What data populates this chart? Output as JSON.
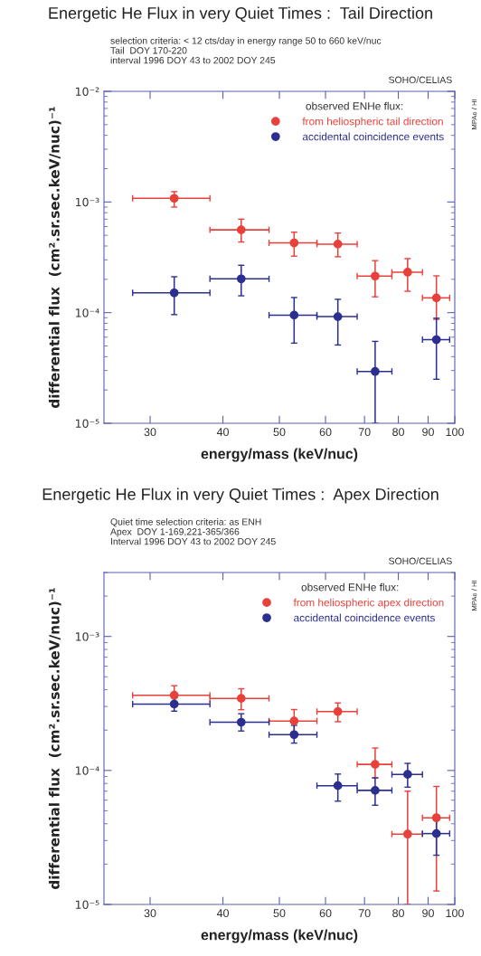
{
  "chart_data": [
    {
      "type": "scatter",
      "title": "Energetic He Flux in very Quiet Times :  Tail Direction",
      "subtitle": "selection criteria: < 12 cts/day in energy range 50 to 660 keV/nuc\nTail  DOY 170-220\ninterval 1996 DOY 43 to 2002 DOY 245",
      "xlabel": "energy/mass (keV/nuc)",
      "ylabel": "differential flux  (cm².sr.sec.keV/nuc)⁻¹",
      "legend_title": "observed ENHe flux:",
      "annotations": [
        "SOHO/CELIAS",
        "MPAe / HI"
      ],
      "log": "xy",
      "legend": "top right",
      "marker": "circle",
      "grid": false,
      "xlim": [
        25,
        100
      ],
      "xticks": [
        30,
        40,
        50,
        60,
        70,
        80,
        90,
        100
      ],
      "ylim": [
        1e-05,
        0.01
      ],
      "yticks": [
        {
          "value": 1e-05,
          "label": "10⁻⁵"
        },
        {
          "value": 0.0001,
          "label": "10⁻⁴"
        },
        {
          "value": 0.001,
          "label": "10⁻³"
        },
        {
          "value": 0.01,
          "label": "10⁻²"
        }
      ],
      "x": [
        33,
        43,
        53,
        63,
        73,
        83,
        93
      ],
      "series": [
        {
          "name": "from heliospheric tail direction",
          "color": "#e8403a",
          "values": [
            0.00108,
            0.00056,
            0.000427,
            0.000416,
            0.000214,
            0.000232,
            0.000136
          ],
          "errors": [
            [
              0.0009,
              0.00124
            ],
            [
              0.000435,
              0.0007
            ],
            [
              0.000324,
              0.000534
            ],
            [
              0.00032,
              0.000524
            ],
            [
              0.000139,
              0.000295
            ],
            [
              0.000156,
              0.000308
            ],
            [
              8.7e-05,
              0.000215
            ]
          ],
          "xerrors": [
            5,
            5,
            5,
            5,
            5,
            5,
            5
          ]
        },
        {
          "name": "accidental coincidence events",
          "color": "#2b2f8f",
          "values": [
            0.000151,
            0.000202,
            9.5e-05,
            9.2e-05,
            2.94e-05,
            null,
            5.7e-05
          ],
          "errors": [
            [
              9.6e-05,
              0.000211
            ],
            [
              0.000142,
              0.000268
            ],
            [
              5.3e-05,
              0.000137
            ],
            [
              5.1e-05,
              0.000132
            ],
            [
              1e-05,
              5.5e-05
            ],
            null,
            [
              2.5e-05,
              8.9e-05
            ]
          ],
          "xerrors": [
            5,
            5,
            5,
            5,
            5,
            null,
            5
          ]
        }
      ]
    },
    {
      "type": "scatter",
      "title": "Energetic He Flux in very Quiet Times :  Apex Direction",
      "subtitle": "Quiet time selection criteria: as ENH\nApex  DOY 1-169,221-365/366\nInterval 1996 DOY 43 to 2002 DOY 245",
      "xlabel": "energy/mass (keV/nuc)",
      "ylabel": "differential flux  (cm².sr.sec.keV/nuc)⁻¹",
      "legend_title": "observed ENHe flux:",
      "annotations": [
        "SOHO/CELIAS",
        "MPAe / HI"
      ],
      "log": "xy",
      "legend": "top right",
      "marker": "circle",
      "grid": false,
      "xlim": [
        25,
        100
      ],
      "xticks": [
        30,
        40,
        50,
        60,
        70,
        80,
        90,
        100
      ],
      "ylim": [
        1e-05,
        0.003
      ],
      "yticks": [
        {
          "value": 1e-05,
          "label": "10⁻⁵"
        },
        {
          "value": 0.0001,
          "label": "10⁻⁴"
        },
        {
          "value": 0.001,
          "label": "10⁻³"
        }
      ],
      "x": [
        33,
        43,
        53,
        63,
        73,
        83,
        93
      ],
      "series": [
        {
          "name": "from heliospheric apex direction",
          "color": "#e8403a",
          "values": [
            0.000364,
            0.000345,
            0.000234,
            0.000275,
            0.000111,
            3.35e-05,
            4.43e-05
          ],
          "errors": [
            [
              0.000298,
              0.000429
            ],
            [
              0.000284,
              0.000407
            ],
            [
              0.000192,
              0.000285
            ],
            [
              0.000231,
              0.000319
            ],
            [
              8.8e-05,
              0.000147
            ],
            [
              1e-05,
              7e-05
            ],
            [
              1.26e-05,
              7.6e-05
            ]
          ],
          "xerrors": [
            5,
            5,
            5,
            5,
            5,
            5,
            5
          ]
        },
        {
          "name": "accidental coincidence events",
          "color": "#2b2f8f",
          "values": [
            0.000313,
            0.000229,
            0.000185,
            7.7e-05,
            7.1e-05,
            9.35e-05,
            3.38e-05
          ],
          "errors": [
            [
              0.000277,
              0.000349
            ],
            [
              0.000197,
              0.000265
            ],
            [
              0.00016,
              0.000217
            ],
            [
              5.9e-05,
              9.4e-05
            ],
            [
              5.5e-05,
              8.8e-05
            ],
            [
              7.5e-05,
              0.000113
            ],
            [
              2.33e-05,
              4.63e-05
            ]
          ],
          "xerrors": [
            5,
            5,
            5,
            5,
            5,
            5,
            5
          ]
        }
      ]
    }
  ]
}
